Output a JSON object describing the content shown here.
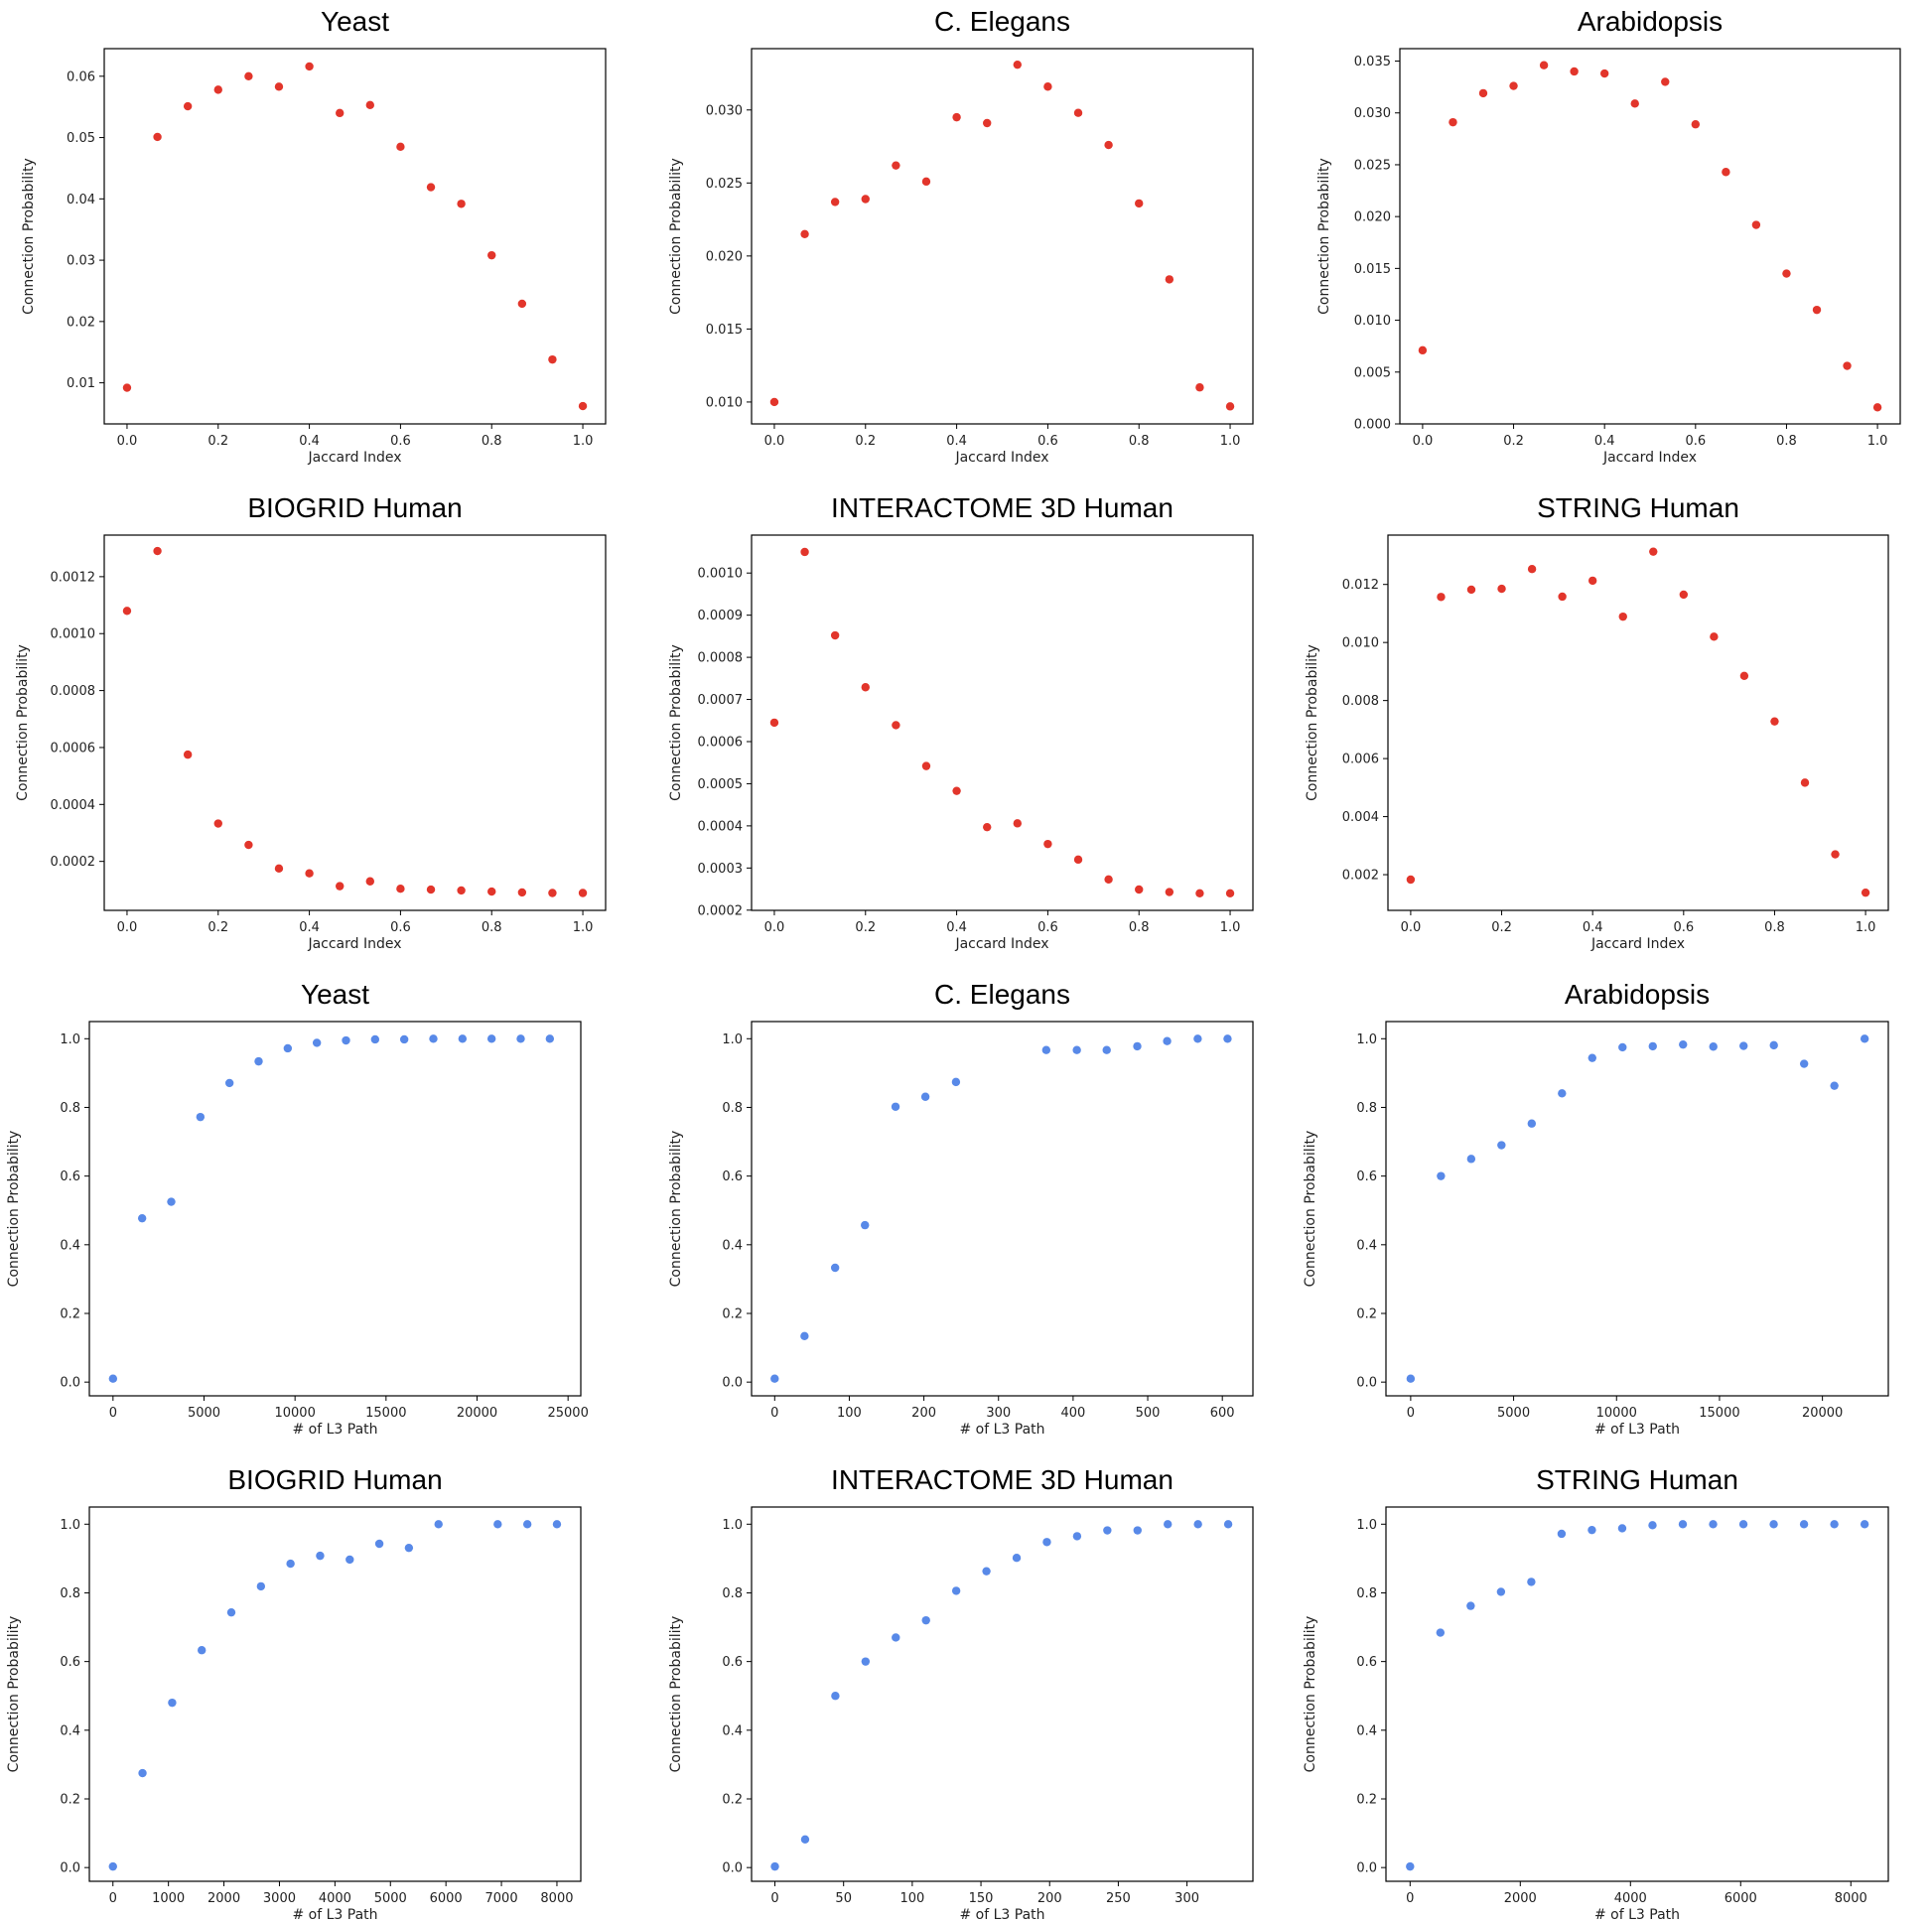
{
  "colors": {
    "red": "#e2352b",
    "blue": "#5889e8"
  },
  "chart_data": [
    {
      "type": "scatter",
      "title": "Yeast",
      "xlabel": "Jaccard Index",
      "ylabel": "Connection Probability",
      "color": "#e2352b",
      "x": [
        0.0,
        0.0667,
        0.1333,
        0.2,
        0.2667,
        0.3333,
        0.4,
        0.4667,
        0.5333,
        0.6,
        0.6667,
        0.7333,
        0.8,
        0.8667,
        0.9333,
        1.0
      ],
      "y": [
        0.0092,
        0.0501,
        0.0551,
        0.0578,
        0.06,
        0.0583,
        0.0616,
        0.054,
        0.0553,
        0.0485,
        0.0419,
        0.0392,
        0.0308,
        0.0229,
        0.0138,
        0.0062
      ],
      "xlim": [
        -0.05,
        1.05
      ],
      "ylim": [
        0.0033,
        0.0645
      ],
      "xticks": [
        0.0,
        0.2,
        0.4,
        0.6,
        0.8,
        1.0
      ],
      "xtick_labels": [
        "0.0",
        "0.2",
        "0.4",
        "0.6",
        "0.8",
        "1.0"
      ],
      "yticks": [
        0.01,
        0.02,
        0.03,
        0.04,
        0.05,
        0.06
      ],
      "ytick_labels": [
        "0.01",
        "0.02",
        "0.03",
        "0.04",
        "0.05",
        "0.06"
      ]
    },
    {
      "type": "scatter",
      "title": "C. Elegans",
      "xlabel": "Jaccard Index",
      "ylabel": "Connection Probability",
      "color": "#e2352b",
      "x": [
        0.0,
        0.0667,
        0.1333,
        0.2,
        0.2667,
        0.3333,
        0.4,
        0.4667,
        0.5333,
        0.6,
        0.6667,
        0.7333,
        0.8,
        0.8667,
        0.9333,
        1.0
      ],
      "y": [
        0.01,
        0.0215,
        0.0237,
        0.0239,
        0.0262,
        0.0251,
        0.0295,
        0.0291,
        0.0331,
        0.0316,
        0.0298,
        0.0276,
        0.0236,
        0.0184,
        0.011,
        0.0097
      ],
      "xlim": [
        -0.05,
        1.05
      ],
      "ylim": [
        0.0085,
        0.0342
      ],
      "xticks": [
        0.0,
        0.2,
        0.4,
        0.6,
        0.8,
        1.0
      ],
      "xtick_labels": [
        "0.0",
        "0.2",
        "0.4",
        "0.6",
        "0.8",
        "1.0"
      ],
      "yticks": [
        0.01,
        0.015,
        0.02,
        0.025,
        0.03
      ],
      "ytick_labels": [
        "0.010",
        "0.015",
        "0.020",
        "0.025",
        "0.030"
      ]
    },
    {
      "type": "scatter",
      "title": "Arabidopsis",
      "xlabel": "Jaccard Index",
      "ylabel": "Connection Probability",
      "color": "#e2352b",
      "x": [
        0.0,
        0.0667,
        0.1333,
        0.2,
        0.2667,
        0.3333,
        0.4,
        0.4667,
        0.5333,
        0.6,
        0.6667,
        0.7333,
        0.8,
        0.8667,
        0.9333,
        1.0
      ],
      "y": [
        0.0071,
        0.0291,
        0.0319,
        0.0326,
        0.0346,
        0.034,
        0.0338,
        0.0309,
        0.033,
        0.0289,
        0.0243,
        0.0192,
        0.0145,
        0.011,
        0.0056,
        0.0016
      ],
      "xlim": [
        -0.05,
        1.05
      ],
      "ylim": [
        0.0,
        0.0362
      ],
      "xticks": [
        0.0,
        0.2,
        0.4,
        0.6,
        0.8,
        1.0
      ],
      "xtick_labels": [
        "0.0",
        "0.2",
        "0.4",
        "0.6",
        "0.8",
        "1.0"
      ],
      "yticks": [
        0.0,
        0.005,
        0.01,
        0.015,
        0.02,
        0.025,
        0.03,
        0.035
      ],
      "ytick_labels": [
        "0.000",
        "0.005",
        "0.010",
        "0.015",
        "0.020",
        "0.025",
        "0.030",
        "0.035"
      ]
    },
    {
      "type": "scatter",
      "title": "BIOGRID Human",
      "xlabel": "Jaccard Index",
      "ylabel": "Connection Probability",
      "color": "#e2352b",
      "x": [
        0.0,
        0.0667,
        0.1333,
        0.2,
        0.2667,
        0.3333,
        0.4,
        0.4667,
        0.5333,
        0.6,
        0.6667,
        0.7333,
        0.8,
        0.8667,
        0.9333,
        1.0
      ],
      "y": [
        0.00108,
        0.00129,
        0.000575,
        0.000333,
        0.000258,
        0.000175,
        0.000158,
        0.000113,
        0.00013,
        0.000104,
        0.000101,
        9.8e-05,
        9.4e-05,
        9.1e-05,
        8.9e-05,
        8.9e-05
      ],
      "xlim": [
        -0.05,
        1.05
      ],
      "ylim": [
        2.8e-05,
        0.001346
      ],
      "xticks": [
        0.0,
        0.2,
        0.4,
        0.6,
        0.8,
        1.0
      ],
      "xtick_labels": [
        "0.0",
        "0.2",
        "0.4",
        "0.6",
        "0.8",
        "1.0"
      ],
      "yticks": [
        0.0002,
        0.0004,
        0.0006,
        0.0008,
        0.001,
        0.0012
      ],
      "ytick_labels": [
        "0.0002",
        "0.0004",
        "0.0006",
        "0.0008",
        "0.0010",
        "0.0012"
      ]
    },
    {
      "type": "scatter",
      "title": "INTERACTOME 3D Human",
      "xlabel": "Jaccard Index",
      "ylabel": "Connection Probability",
      "color": "#e2352b",
      "x": [
        0.0,
        0.0667,
        0.1333,
        0.2,
        0.2667,
        0.3333,
        0.4,
        0.4667,
        0.5333,
        0.6,
        0.6667,
        0.7333,
        0.8,
        0.8667,
        0.9333,
        1.0
      ],
      "y": [
        0.000645,
        0.00105,
        0.000852,
        0.000729,
        0.000639,
        0.000542,
        0.000483,
        0.000397,
        0.000406,
        0.000357,
        0.00032,
        0.000273,
        0.000249,
        0.000243,
        0.00024,
        0.00024
      ],
      "xlim": [
        -0.05,
        1.05
      ],
      "ylim": [
        0.0001995,
        0.00109
      ],
      "xticks": [
        0.0,
        0.2,
        0.4,
        0.6,
        0.8,
        1.0
      ],
      "xtick_labels": [
        "0.0",
        "0.2",
        "0.4",
        "0.6",
        "0.8",
        "1.0"
      ],
      "yticks": [
        0.0002,
        0.0003,
        0.0004,
        0.0005,
        0.0006,
        0.0007,
        0.0008,
        0.0009,
        0.001
      ],
      "ytick_labels": [
        "0.0002",
        "0.0003",
        "0.0004",
        "0.0005",
        "0.0006",
        "0.0007",
        "0.0008",
        "0.0009",
        "0.0010"
      ]
    },
    {
      "type": "scatter",
      "title": "STRING Human",
      "xlabel": "Jaccard Index",
      "ylabel": "Connection Probability",
      "color": "#e2352b",
      "x": [
        0.0,
        0.0667,
        0.1333,
        0.2,
        0.2667,
        0.3333,
        0.4,
        0.4667,
        0.5333,
        0.6,
        0.6667,
        0.7333,
        0.8,
        0.8667,
        0.9333,
        1.0
      ],
      "y": [
        0.00183,
        0.01157,
        0.01182,
        0.01185,
        0.01253,
        0.01158,
        0.01213,
        0.01089,
        0.01313,
        0.01165,
        0.0102,
        0.00885,
        0.00728,
        0.00517,
        0.0027,
        0.00138
      ],
      "xlim": [
        -0.05,
        1.05
      ],
      "ylim": [
        0.00077,
        0.0137
      ],
      "xticks": [
        0.0,
        0.2,
        0.4,
        0.6,
        0.8,
        1.0
      ],
      "xtick_labels": [
        "0.0",
        "0.2",
        "0.4",
        "0.6",
        "0.8",
        "1.0"
      ],
      "yticks": [
        0.002,
        0.004,
        0.006,
        0.008,
        0.01,
        0.012
      ],
      "ytick_labels": [
        "0.002",
        "0.004",
        "0.006",
        "0.008",
        "0.010",
        "0.012"
      ]
    },
    {
      "type": "scatter",
      "title": "Yeast",
      "xlabel": "# of L3 Path",
      "ylabel": "Connection Probability",
      "color": "#5889e8",
      "x": [
        0,
        1600,
        3200,
        4800,
        6400,
        8000,
        9600,
        11200,
        12800,
        14400,
        16000,
        17600,
        19200,
        20800,
        22400,
        24000
      ],
      "y": [
        0.01,
        0.477,
        0.525,
        0.772,
        0.871,
        0.934,
        0.972,
        0.988,
        0.995,
        0.998,
        0.998,
        1.0,
        1.0,
        1.0,
        1.0,
        1.0
      ],
      "xlim": [
        -1300,
        25700
      ],
      "ylim": [
        -0.04,
        1.05
      ],
      "xticks": [
        0,
        5000,
        10000,
        15000,
        20000,
        25000
      ],
      "xtick_labels": [
        "0",
        "5000",
        "10000",
        "15000",
        "20000",
        "25000"
      ],
      "yticks": [
        0.0,
        0.2,
        0.4,
        0.6,
        0.8,
        1.0
      ],
      "ytick_labels": [
        "0.0",
        "0.2",
        "0.4",
        "0.6",
        "0.8",
        "1.0"
      ]
    },
    {
      "type": "scatter",
      "title": "C. Elegans",
      "xlabel": "# of L3 Path",
      "ylabel": "Connection Probability",
      "color": "#5889e8",
      "x": [
        0,
        40,
        81,
        121,
        162,
        202,
        243,
        364,
        405,
        445,
        486,
        526,
        567,
        607
      ],
      "y": [
        0.01,
        0.134,
        0.333,
        0.457,
        0.802,
        0.831,
        0.874,
        0.967,
        0.967,
        0.967,
        0.978,
        0.993,
        1.0,
        1.0
      ],
      "xlim": [
        -31,
        641
      ],
      "ylim": [
        -0.04,
        1.05
      ],
      "xticks": [
        0,
        100,
        200,
        300,
        400,
        500,
        600
      ],
      "xtick_labels": [
        "0",
        "100",
        "200",
        "300",
        "400",
        "500",
        "600"
      ],
      "yticks": [
        0.0,
        0.2,
        0.4,
        0.6,
        0.8,
        1.0
      ],
      "ytick_labels": [
        "0.0",
        "0.2",
        "0.4",
        "0.6",
        "0.8",
        "1.0"
      ]
    },
    {
      "type": "scatter",
      "title": "Arabidopsis",
      "xlabel": "# of L3 Path",
      "ylabel": "Connection Probability",
      "color": "#5889e8",
      "x": [
        0,
        1470,
        2940,
        4410,
        5880,
        7350,
        8820,
        10290,
        11760,
        13230,
        14700,
        16170,
        17640,
        19110,
        20580,
        22050
      ],
      "y": [
        0.01,
        0.6,
        0.65,
        0.69,
        0.753,
        0.841,
        0.944,
        0.975,
        0.978,
        0.983,
        0.977,
        0.979,
        0.981,
        0.927,
        0.863,
        1.0
      ],
      "xlim": [
        -1200,
        23200
      ],
      "ylim": [
        -0.04,
        1.05
      ],
      "xticks": [
        0,
        5000,
        10000,
        15000,
        20000
      ],
      "xtick_labels": [
        "0",
        "5000",
        "10000",
        "15000",
        "20000"
      ],
      "yticks": [
        0.0,
        0.2,
        0.4,
        0.6,
        0.8,
        1.0
      ],
      "ytick_labels": [
        "0.0",
        "0.2",
        "0.4",
        "0.6",
        "0.8",
        "1.0"
      ]
    },
    {
      "type": "scatter",
      "title": "BIOGRID Human",
      "xlabel": "# of L3 Path",
      "ylabel": "Connection Probability",
      "color": "#5889e8",
      "x": [
        0,
        533,
        1067,
        1600,
        2133,
        2667,
        3200,
        3733,
        4267,
        4800,
        5333,
        5867,
        6933,
        7467,
        8000
      ],
      "y": [
        0.003,
        0.275,
        0.48,
        0.633,
        0.743,
        0.819,
        0.885,
        0.908,
        0.897,
        0.943,
        0.931,
        1.0,
        1.0,
        1.0,
        1.0
      ],
      "xlim": [
        -425,
        8430
      ],
      "ylim": [
        -0.04,
        1.05
      ],
      "xticks": [
        0,
        1000,
        2000,
        3000,
        4000,
        5000,
        6000,
        7000,
        8000
      ],
      "xtick_labels": [
        "0",
        "1000",
        "2000",
        "3000",
        "4000",
        "5000",
        "6000",
        "7000",
        "8000"
      ],
      "yticks": [
        0.0,
        0.2,
        0.4,
        0.6,
        0.8,
        1.0
      ],
      "ytick_labels": [
        "0.0",
        "0.2",
        "0.4",
        "0.6",
        "0.8",
        "1.0"
      ]
    },
    {
      "type": "scatter",
      "title": "INTERACTOME 3D Human",
      "xlabel": "# of L3 Path",
      "ylabel": "Connection Probability",
      "color": "#5889e8",
      "x": [
        0,
        22,
        44,
        66,
        88,
        110,
        132,
        154,
        176,
        198,
        220,
        242,
        264,
        286,
        308,
        330
      ],
      "y": [
        0.003,
        0.082,
        0.5,
        0.6,
        0.67,
        0.72,
        0.806,
        0.863,
        0.902,
        0.948,
        0.965,
        0.982,
        0.982,
        1.0,
        1.0,
        1.0
      ],
      "xlim": [
        -17,
        348
      ],
      "ylim": [
        -0.04,
        1.05
      ],
      "xticks": [
        0,
        50,
        100,
        150,
        200,
        250,
        300
      ],
      "xtick_labels": [
        "0",
        "50",
        "100",
        "150",
        "200",
        "250",
        "300"
      ],
      "yticks": [
        0.0,
        0.2,
        0.4,
        0.6,
        0.8,
        1.0
      ],
      "ytick_labels": [
        "0.0",
        "0.2",
        "0.4",
        "0.6",
        "0.8",
        "1.0"
      ]
    },
    {
      "type": "scatter",
      "title": "STRING Human",
      "xlabel": "# of L3 Path",
      "ylabel": "Connection Probability",
      "color": "#5889e8",
      "x": [
        0,
        550,
        1100,
        1650,
        2200,
        2750,
        3300,
        3850,
        4400,
        4950,
        5500,
        6050,
        6600,
        7150,
        7700,
        8250
      ],
      "y": [
        0.003,
        0.684,
        0.762,
        0.803,
        0.832,
        0.972,
        0.983,
        0.988,
        0.997,
        1.0,
        1.0,
        1.0,
        1.0,
        1.0,
        1.0,
        1.0
      ],
      "xlim": [
        -438,
        8680
      ],
      "ylim": [
        -0.04,
        1.05
      ],
      "xticks": [
        0,
        2000,
        4000,
        6000,
        8000
      ],
      "xtick_labels": [
        "0",
        "2000",
        "4000",
        "6000",
        "8000"
      ],
      "yticks": [
        0.0,
        0.2,
        0.4,
        0.6,
        0.8,
        1.0
      ],
      "ytick_labels": [
        "0.0",
        "0.2",
        "0.4",
        "0.6",
        "0.8",
        "1.0"
      ]
    }
  ]
}
